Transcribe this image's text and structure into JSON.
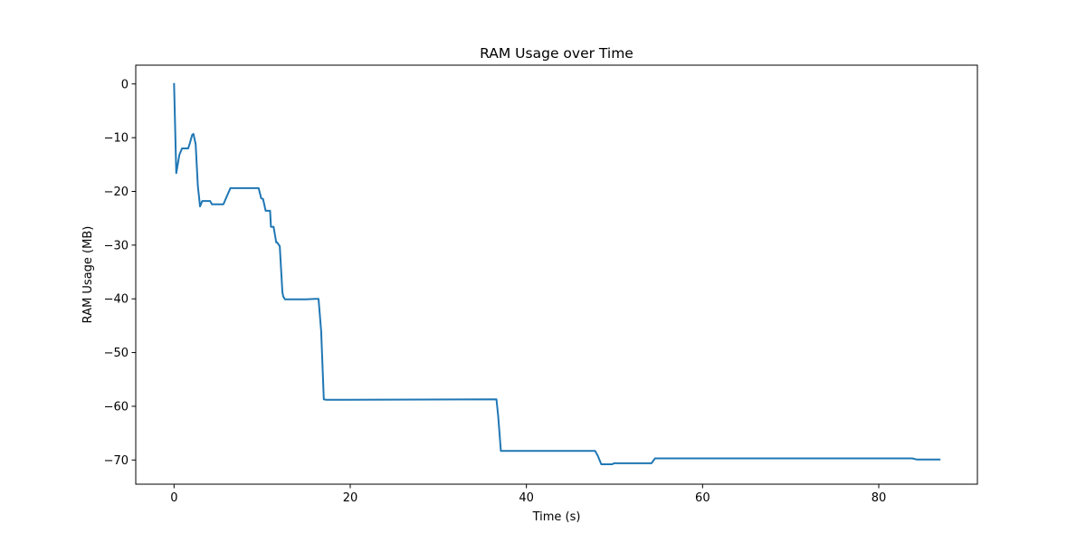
{
  "chart_data": {
    "type": "line",
    "title": "RAM Usage over Time",
    "xlabel": "Time (s)",
    "ylabel": "RAM Usage (MB)",
    "xlim": [
      -4.35,
      91.2
    ],
    "ylim": [
      -74.5,
      3.5
    ],
    "xticks": [
      0,
      20,
      40,
      60,
      80
    ],
    "yticks": [
      0,
      -10,
      -20,
      -30,
      -40,
      -50,
      -60,
      -70
    ],
    "grid": false,
    "series": [
      {
        "color": "#1f77b4",
        "x": [
          0.0,
          0.25,
          0.6,
          0.9,
          1.3,
          1.6,
          1.8,
          2.05,
          2.2,
          2.45,
          2.7,
          2.95,
          3.2,
          3.8,
          4.1,
          4.3,
          5.0,
          5.6,
          6.1,
          6.4,
          7.5,
          8.5,
          9.6,
          9.9,
          10.1,
          10.4,
          10.9,
          11.0,
          11.3,
          11.6,
          11.7,
          12.0,
          12.3,
          12.4,
          12.6,
          13.0,
          15.0,
          16.0,
          16.4,
          16.7,
          16.9,
          17.0,
          17.3,
          36.6,
          36.8,
          37.1,
          37.3,
          47.8,
          48.1,
          48.5,
          49.7,
          50.0,
          54.2,
          54.6,
          83.8,
          84.3,
          86.9
        ],
        "y": [
          0.0,
          -16.6,
          -13.2,
          -12.0,
          -12.0,
          -12.0,
          -11.0,
          -9.5,
          -9.3,
          -11.2,
          -19.0,
          -22.8,
          -21.8,
          -21.8,
          -21.8,
          -22.4,
          -22.4,
          -22.4,
          -20.5,
          -19.4,
          -19.4,
          -19.4,
          -19.4,
          -21.3,
          -21.4,
          -23.6,
          -23.6,
          -26.6,
          -26.6,
          -29.5,
          -29.5,
          -30.2,
          -38.8,
          -39.6,
          -40.1,
          -40.1,
          -40.1,
          -40.0,
          -40.0,
          -46.0,
          -54.5,
          -58.7,
          -58.8,
          -58.7,
          -61.9,
          -68.3,
          -68.3,
          -68.3,
          -69.2,
          -70.8,
          -70.8,
          -70.6,
          -70.6,
          -69.7,
          -69.7,
          -69.9,
          -69.9
        ]
      }
    ]
  }
}
